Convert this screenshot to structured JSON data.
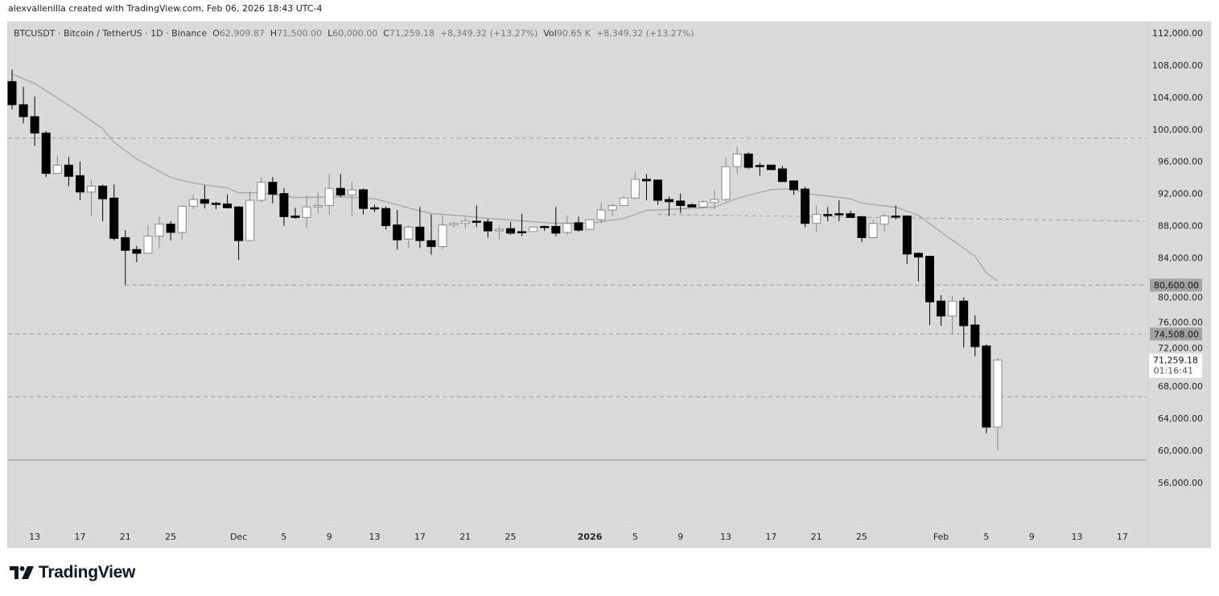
{
  "credit": "alexvallenilla created with TradingView.com, Feb 06, 2026 18:43 UTC-4",
  "legend": {
    "symbol": "BTCUSDT · Bitcoin / TetherUS · 1D · Binance",
    "o_label": "O",
    "o_value": "62,909.87",
    "h_label": "H",
    "h_value": "71,500.00",
    "l_label": "L",
    "l_value": "60,000.00",
    "c_label": "C",
    "c_value": "71,259.18",
    "change": "+8,349.32 (+13.27%)",
    "vol_label": "Vol",
    "vol_value": "90.65 K",
    "vol_change": "+8,349.32 (+13.27%)"
  },
  "logo": {
    "text": "TradingView"
  },
  "chart_data": {
    "type": "candlestick",
    "title": "",
    "ylim": [
      56000,
      112000
    ],
    "grid": false,
    "colors": {
      "background": "#dadada",
      "up_fill": "#ffffff",
      "up_border": "#888888",
      "down_fill": "#000000",
      "ma_line": "#a0a0a0",
      "level_line": "#9a9a9a",
      "level_label_bg": "#a3a3a3"
    },
    "y_ticks": [
      "112,000.00",
      "108,000.00",
      "104,000.00",
      "100,000.00",
      "96,000.00",
      "92,000.00",
      "88,000.00",
      "84,000.00",
      "80,000.00",
      "76,000.00",
      "72,000.00",
      "68,000.00",
      "64,000.00",
      "60,000.00",
      "56,000.00"
    ],
    "y_tick_values": [
      112000,
      108000,
      104000,
      100000,
      96000,
      92000,
      88000,
      84000,
      80000,
      76000,
      72000,
      68000,
      64000,
      60000,
      56000
    ],
    "x_ticks": [
      {
        "date": "2025-11-13",
        "label": "13"
      },
      {
        "date": "2025-11-17",
        "label": "17"
      },
      {
        "date": "2025-11-21",
        "label": "21"
      },
      {
        "date": "2025-11-25",
        "label": "25"
      },
      {
        "date": "2025-12-01",
        "label": "Dec"
      },
      {
        "date": "2025-12-05",
        "label": "5"
      },
      {
        "date": "2025-12-09",
        "label": "9"
      },
      {
        "date": "2025-12-13",
        "label": "13"
      },
      {
        "date": "2025-12-17",
        "label": "17"
      },
      {
        "date": "2025-12-21",
        "label": "21"
      },
      {
        "date": "2025-12-25",
        "label": "25"
      },
      {
        "date": "2026-01-01",
        "label": "2026",
        "bold": true
      },
      {
        "date": "2026-01-05",
        "label": "5"
      },
      {
        "date": "2026-01-09",
        "label": "9"
      },
      {
        "date": "2026-01-13",
        "label": "13"
      },
      {
        "date": "2026-01-17",
        "label": "17"
      },
      {
        "date": "2026-01-21",
        "label": "21"
      },
      {
        "date": "2026-01-25",
        "label": "25"
      },
      {
        "date": "2026-02-01",
        "label": "Feb"
      },
      {
        "date": "2026-02-05",
        "label": "5"
      },
      {
        "date": "2026-02-09",
        "label": "9"
      },
      {
        "date": "2026-02-13",
        "label": "13"
      },
      {
        "date": "2026-02-17",
        "label": "17"
      }
    ],
    "candles_columns": [
      "date",
      "open",
      "high",
      "low",
      "close"
    ],
    "candles": [
      [
        "2025-11-11",
        105950,
        107440,
        102510,
        103070
      ],
      [
        "2025-11-12",
        103070,
        105300,
        100750,
        101580
      ],
      [
        "2025-11-13",
        101580,
        104090,
        97950,
        99540
      ],
      [
        "2025-11-14",
        99540,
        99810,
        94050,
        94510
      ],
      [
        "2025-11-15",
        94510,
        96750,
        94510,
        95540
      ],
      [
        "2025-11-16",
        95540,
        96560,
        92930,
        94140
      ],
      [
        "2025-11-17",
        94230,
        96000,
        91160,
        92190
      ],
      [
        "2025-11-18",
        92190,
        93770,
        89210,
        92930
      ],
      [
        "2025-11-19",
        92930,
        93120,
        88560,
        91350
      ],
      [
        "2025-11-20",
        91440,
        93120,
        86140,
        86420
      ],
      [
        "2025-11-21",
        86510,
        87440,
        80600,
        84930
      ],
      [
        "2025-11-22",
        85030,
        85490,
        83440,
        84560
      ],
      [
        "2025-11-23",
        84560,
        88000,
        84560,
        86700
      ],
      [
        "2025-11-24",
        86700,
        89120,
        85210,
        88190
      ],
      [
        "2025-11-25",
        88190,
        88560,
        86140,
        87160
      ],
      [
        "2025-11-26",
        87160,
        90510,
        86330,
        90420
      ],
      [
        "2025-11-27",
        90420,
        91910,
        90050,
        91260
      ],
      [
        "2025-11-28",
        91260,
        93020,
        90140,
        90790
      ],
      [
        "2025-11-29",
        90790,
        90980,
        90050,
        90700
      ],
      [
        "2025-11-30",
        90700,
        91910,
        90150,
        90230
      ],
      [
        "2025-12-01",
        90330,
        90400,
        83720,
        86140
      ],
      [
        "2025-12-02",
        86140,
        92280,
        86100,
        91160
      ],
      [
        "2025-12-03",
        91160,
        94050,
        90890,
        93400
      ],
      [
        "2025-12-04",
        93400,
        94050,
        90790,
        91910
      ],
      [
        "2025-12-05",
        92000,
        92650,
        88000,
        89120
      ],
      [
        "2025-12-06",
        89210,
        90230,
        88840,
        89020
      ],
      [
        "2025-12-07",
        89020,
        91720,
        87630,
        90330
      ],
      [
        "2025-12-08",
        90330,
        92190,
        89490,
        90510
      ],
      [
        "2025-12-09",
        90510,
        94510,
        89400,
        92650
      ],
      [
        "2025-12-10",
        92650,
        94420,
        91540,
        91820
      ],
      [
        "2025-12-11",
        91820,
        93490,
        89210,
        92470
      ],
      [
        "2025-12-12",
        92470,
        92650,
        89400,
        90140
      ],
      [
        "2025-12-13",
        90230,
        90610,
        89680,
        90140
      ],
      [
        "2025-12-14",
        90140,
        90420,
        87540,
        88000
      ],
      [
        "2025-12-15",
        88090,
        89950,
        85030,
        86230
      ],
      [
        "2025-12-16",
        86330,
        88090,
        85210,
        87820
      ],
      [
        "2025-12-17",
        87820,
        90330,
        85210,
        86140
      ],
      [
        "2025-12-18",
        86140,
        89400,
        84370,
        85400
      ],
      [
        "2025-12-19",
        85400,
        89300,
        85030,
        88090
      ],
      [
        "2025-12-20",
        88090,
        88470,
        87720,
        88280
      ],
      [
        "2025-12-21",
        88280,
        89020,
        87630,
        88560
      ],
      [
        "2025-12-22",
        88560,
        90510,
        87820,
        88470
      ],
      [
        "2025-12-23",
        88470,
        88840,
        86510,
        87350
      ],
      [
        "2025-12-24",
        87350,
        88000,
        86330,
        87540
      ],
      [
        "2025-12-25",
        87630,
        88470,
        86890,
        87070
      ],
      [
        "2025-12-26",
        87260,
        89490,
        86700,
        87160
      ],
      [
        "2025-12-27",
        87260,
        87910,
        87260,
        87820
      ],
      [
        "2025-12-28",
        87910,
        88000,
        87350,
        87880
      ],
      [
        "2025-12-29",
        87910,
        90330,
        86700,
        87070
      ],
      [
        "2025-12-30",
        87160,
        89300,
        86790,
        88280
      ],
      [
        "2025-12-31",
        88370,
        89120,
        87260,
        87440
      ],
      [
        "2026-01-01",
        87540,
        88840,
        87540,
        88750
      ],
      [
        "2026-01-02",
        88750,
        90890,
        88280,
        89950
      ],
      [
        "2026-01-03",
        89950,
        90700,
        89210,
        90510
      ],
      [
        "2026-01-04",
        90510,
        91720,
        90510,
        91440
      ],
      [
        "2026-01-05",
        91440,
        94700,
        91440,
        93770
      ],
      [
        "2026-01-06",
        93770,
        94420,
        91160,
        93580
      ],
      [
        "2026-01-07",
        93680,
        93700,
        90610,
        91160
      ],
      [
        "2026-01-08",
        91260,
        91630,
        89210,
        90980
      ],
      [
        "2026-01-09",
        91070,
        92000,
        89580,
        90510
      ],
      [
        "2026-01-10",
        90610,
        90790,
        90330,
        90330
      ],
      [
        "2026-01-11",
        90330,
        91160,
        90140,
        90980
      ],
      [
        "2026-01-12",
        90890,
        92470,
        90050,
        91260
      ],
      [
        "2026-01-13",
        91260,
        96470,
        90980,
        95350
      ],
      [
        "2026-01-14",
        95350,
        97860,
        94510,
        96930
      ],
      [
        "2026-01-15",
        96930,
        97120,
        95070,
        95260
      ],
      [
        "2026-01-16",
        95500,
        95820,
        94230,
        95450
      ],
      [
        "2026-01-17",
        95540,
        95540,
        94980,
        94980
      ],
      [
        "2026-01-18",
        95070,
        95440,
        93490,
        93490
      ],
      [
        "2026-01-19",
        93580,
        93580,
        91820,
        92470
      ],
      [
        "2026-01-20",
        92560,
        92840,
        87820,
        88280
      ],
      [
        "2026-01-21",
        88280,
        90510,
        87160,
        89400
      ],
      [
        "2026-01-22",
        89400,
        90330,
        88560,
        89300
      ],
      [
        "2026-01-23",
        89490,
        91160,
        88560,
        89400
      ],
      [
        "2026-01-24",
        89490,
        89860,
        89020,
        89020
      ],
      [
        "2026-01-25",
        89120,
        89210,
        85960,
        86510
      ],
      [
        "2026-01-26",
        86510,
        88750,
        86420,
        88280
      ],
      [
        "2026-01-27",
        88190,
        89490,
        87260,
        89210
      ],
      [
        "2026-01-28",
        89210,
        90510,
        88750,
        89150
      ],
      [
        "2026-01-29",
        89210,
        89300,
        83260,
        84470
      ],
      [
        "2026-01-30",
        84560,
        84650,
        81040,
        84090
      ],
      [
        "2026-01-31",
        84190,
        84190,
        75630,
        78510
      ],
      [
        "2026-02-01",
        78610,
        79350,
        75540,
        76750
      ],
      [
        "2026-02-02",
        76750,
        79260,
        74508,
        78610
      ],
      [
        "2026-02-03",
        78610,
        79070,
        72840,
        75540
      ],
      [
        "2026-02-04",
        75630,
        76840,
        71720,
        72930
      ],
      [
        "2026-02-05",
        73020,
        73210,
        62140,
        62909.87
      ],
      [
        "2026-02-06",
        62909.87,
        71500,
        60000,
        71259.18
      ]
    ],
    "moving_average": [
      [
        "2025-11-11",
        106900
      ],
      [
        "2025-11-13",
        105700
      ],
      [
        "2025-11-16",
        103000
      ],
      [
        "2025-11-19",
        100100
      ],
      [
        "2025-11-20",
        98400
      ],
      [
        "2025-11-22",
        96300
      ],
      [
        "2025-11-25",
        94000
      ],
      [
        "2025-11-27",
        93300
      ],
      [
        "2025-11-30",
        92700
      ],
      [
        "2025-12-01",
        92100
      ],
      [
        "2025-12-03",
        92100
      ],
      [
        "2025-12-06",
        91500
      ],
      [
        "2025-12-10",
        91600
      ],
      [
        "2025-12-13",
        91350
      ],
      [
        "2025-12-15",
        90600
      ],
      [
        "2025-12-16",
        90200
      ],
      [
        "2025-12-18",
        89500
      ],
      [
        "2025-12-20",
        89300
      ],
      [
        "2025-12-21",
        89200
      ],
      [
        "2025-12-23",
        88900
      ],
      [
        "2025-12-29",
        88300
      ],
      [
        "2026-01-01",
        88300
      ],
      [
        "2026-01-04",
        88900
      ],
      [
        "2026-01-06",
        89900
      ],
      [
        "2026-01-09",
        90100
      ],
      [
        "2026-01-12",
        90300
      ],
      [
        "2026-01-14",
        91400
      ],
      [
        "2026-01-17",
        92500
      ],
      [
        "2026-01-19",
        92600
      ],
      [
        "2026-01-20",
        92000
      ],
      [
        "2026-01-24",
        91350
      ],
      [
        "2026-01-25",
        90800
      ],
      [
        "2026-01-28",
        90300
      ],
      [
        "2026-01-30",
        89300
      ],
      [
        "2026-02-01",
        87200
      ],
      [
        "2026-02-02",
        86200
      ],
      [
        "2026-02-04",
        84200
      ],
      [
        "2026-02-05",
        82100
      ],
      [
        "2026-02-06",
        81100
      ]
    ],
    "horizontal_levels": [
      {
        "price": 98900,
        "style": "dashed",
        "from": "2025-11-11"
      },
      {
        "price": 80600,
        "style": "dashed",
        "from": "2025-11-21",
        "label": "80,600.00"
      },
      {
        "price": 74508,
        "style": "dashed",
        "from": "2025-11-11",
        "label": "74,508.00"
      },
      {
        "price": 66700,
        "style": "dashed",
        "from": "2025-11-11"
      },
      {
        "price": 58800,
        "style": "solid",
        "from": "2025-11-11"
      }
    ],
    "trend_line": {
      "style": "dashed",
      "start": [
        "2026-01-07",
        89400
      ],
      "end": [
        "2026-02-19",
        88560
      ]
    },
    "last_price": {
      "price": 71259.18,
      "label": "71,259.18",
      "countdown": "01:16:41"
    }
  }
}
